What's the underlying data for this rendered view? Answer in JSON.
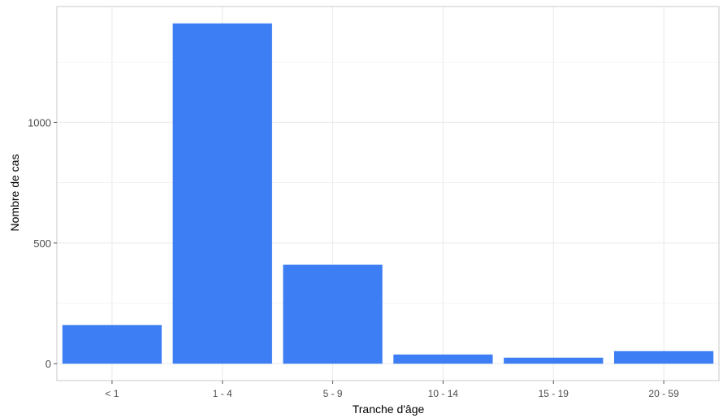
{
  "chart_data": {
    "type": "bar",
    "categories": [
      "< 1",
      "1 - 4",
      "5 - 9",
      "10 - 14",
      "15 - 19",
      "20 - 59"
    ],
    "values": [
      160,
      1410,
      410,
      38,
      25,
      52
    ],
    "xlabel": "Tranche d'âge",
    "ylabel": "Nombre de cas",
    "ylim": [
      -70,
      1480
    ],
    "yticks": [
      0,
      500,
      1000
    ],
    "ytick_labels": [
      "0",
      "500",
      "1000"
    ],
    "grid": true,
    "colors": {
      "bar": "#3d7ef5",
      "grid": "#ebebeb",
      "panel_border": "#c8c8c8"
    }
  }
}
